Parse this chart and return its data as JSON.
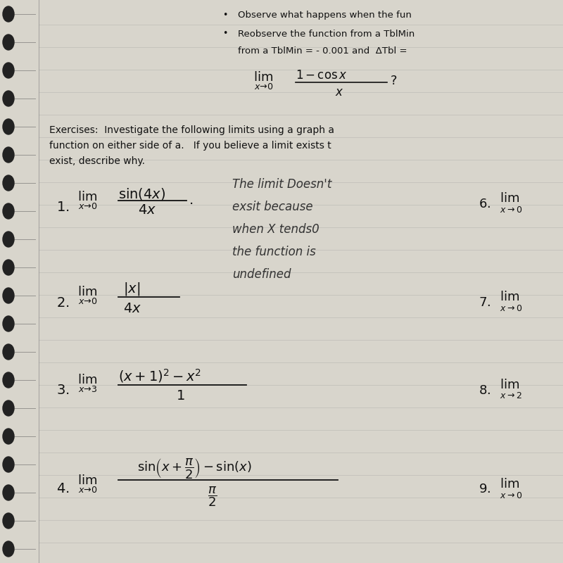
{
  "page_bg": "#c8c5bc",
  "paper_bg": "#d8d5cc",
  "bullet1": "Observe what happens when the fun",
  "bullet2": "Reobserve the function from a TblMin",
  "bullet3": "from a TblMin = - 0.001 and  ΔTbl =",
  "exercises_line1": "Exercises:  Investigate the following limits using a graph a",
  "exercises_line2": "function on either side of a.   If you believe a limit exists t",
  "exercises_line3": "exist, describe why.",
  "hw_lines": [
    "The limit Doesn't",
    "exsit because",
    "when X tends0",
    "the function is",
    "undefined"
  ],
  "line_color": "#999999",
  "margin_line_color": "#aaaaaa",
  "spiral_color": "#555555",
  "text_color": "#111111",
  "hw_color": "#333333"
}
